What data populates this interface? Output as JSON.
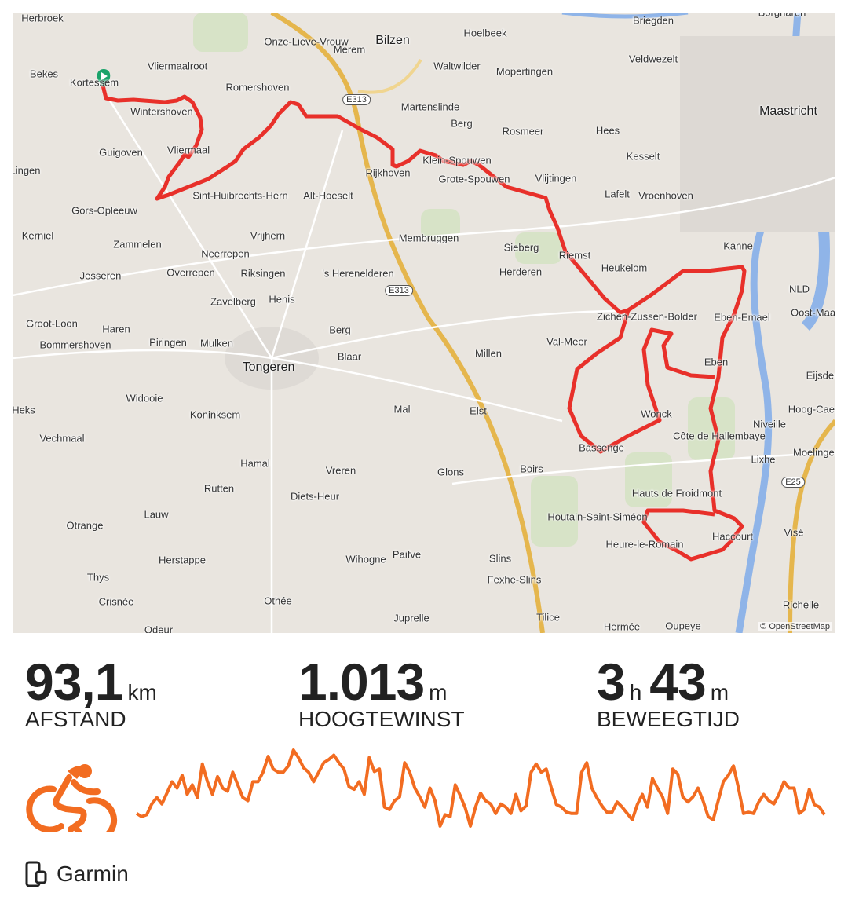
{
  "map": {
    "attribution": "© OpenStreetMap",
    "route_color": "#e8302a",
    "start_marker_color": "#1aa36a",
    "places": [
      "Herbroek",
      "Bekes",
      "Kortessem",
      "Vliermaalroot",
      "Onze-Lieve-Vrouw",
      "Merem",
      "Bilzen",
      "Hoelbeek",
      "Briegden",
      "Borgharen",
      "Wintershoven",
      "Romershoven",
      "Waltwilder",
      "Mopertingen",
      "Veldwezelt",
      "Martenslinde",
      "Berg",
      "Guigoven",
      "Vliermaal",
      "Rosmeer",
      "Hees",
      "Maastricht",
      "Kesselt",
      "Klein-Spouwen",
      "Rijkhoven",
      "Grote-Spouwen",
      "Vlijtingen",
      "Lafelt",
      "Vroenhoven",
      "Sint-Huibrechts-Hern",
      "Alt-Hoeselt",
      "Gors-Opleeuw",
      "Kerniel",
      "Vrijhern",
      "Membruggen",
      "Sieberg",
      "Riemst",
      "Kanne",
      "Zammelen",
      "Neerrepen",
      "Heukelom",
      "Jesseren",
      "Overrepen",
      "Riksingen",
      "'s Herenelderen",
      "Herderen",
      "Zavelberg",
      "Henis",
      "Zichen-Zussen-Bolder",
      "Eben-Emael",
      "Oost-Maarland",
      "Groot-Loon",
      "Haren",
      "Berg",
      "Piringen",
      "Mulken",
      "Bommershoven",
      "Val-Meer",
      "Tongeren",
      "Blaar",
      "Millen",
      "Eben",
      "Eijsden",
      "Widooie",
      "Heks",
      "Koninksem",
      "Mal",
      "Elst",
      "Wonck",
      "Niveille",
      "Hoog-Caestert",
      "Vechmaal",
      "Bassenge",
      "Lixhe",
      "Moelingen",
      "Hamal",
      "Vreren",
      "Glons",
      "Boirs",
      "Rutten",
      "Diets-Heur",
      "Lauw",
      "Hauts de Froidmont",
      "Houtain-Saint-Siméon",
      "Otrange",
      "Heure-le-Romain",
      "Haccourt",
      "Visé",
      "Herstappe",
      "Wihogne",
      "Paifve",
      "Slins",
      "Thys",
      "Fexhe-Slins",
      "Crisnée",
      "Othée",
      "Juprelle",
      "Tilice",
      "Hermée",
      "Oupeye",
      "Richelle",
      "Odeur",
      "Côte de Hallembaye",
      "Lingen",
      "NLD"
    ],
    "shields": [
      "E313",
      "E313",
      "E25"
    ]
  },
  "stats": [
    {
      "value": "93,1",
      "unit": "km",
      "label": "AFSTAND"
    },
    {
      "value": "1.013",
      "unit": "m",
      "label": "HOOGTEWINST"
    },
    {
      "value": "3",
      "unit": "h",
      "value2": "43",
      "unit2": "m",
      "label": "BEWEEGTIJD"
    }
  ],
  "activity": {
    "type": "cycling",
    "icon": "cyclist-icon",
    "color": "#f26c21"
  },
  "device": {
    "icon": "device-icon",
    "name": "Garmin"
  }
}
